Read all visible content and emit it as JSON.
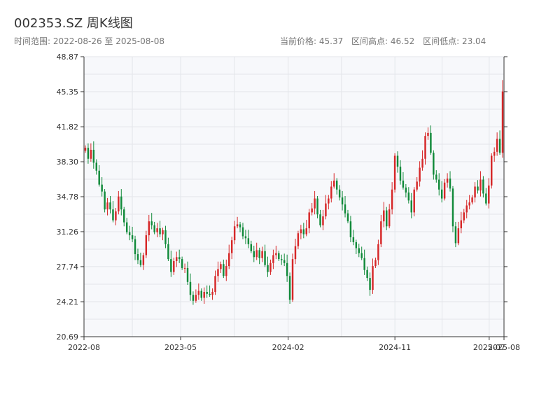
{
  "header": {
    "title": "002353.SZ 周K线图",
    "range_label": "时间范围: 2022-08-26 至 2025-08-08",
    "current_price": "当前价格: 45.37",
    "high_label": "区间高点: 46.52",
    "low_label": "区间低点: 23.04"
  },
  "colors": {
    "up": "#d62728",
    "down": "#118a3a",
    "plot_bg": "#f7f8fb",
    "grid": "#e3e5ea",
    "axis": "#333333"
  },
  "chart_data": {
    "type": "candlestick",
    "title": "002353.SZ 周K线图",
    "xlabel": "",
    "ylabel": "",
    "ylim": [
      20.69,
      48.87
    ],
    "y_ticks": [
      20.69,
      24.21,
      27.74,
      31.26,
      34.78,
      38.3,
      41.82,
      45.35,
      48.87
    ],
    "y_tick_labels": [
      "20.69",
      "24.21",
      "27.74",
      "31.26",
      "34.78",
      "38.30",
      "41.82",
      "45.35",
      "48.87"
    ],
    "x_range": [
      "2022-08-26",
      "2025-08-08"
    ],
    "x_ticks": [
      "2022-08-26",
      "2023-05-01",
      "2024-02-01",
      "2024-11-01",
      "2025-07-01",
      "2025-08-08"
    ],
    "x_tick_labels": [
      "2022-08",
      "2023-05",
      "2024-02",
      "2024-11",
      "2025-07",
      "2025-08"
    ],
    "grid": true,
    "close": [
      39.7,
      38.6,
      39.5,
      38.2,
      37.4,
      36.0,
      35.3,
      33.5,
      34.2,
      33.5,
      32.4,
      33.3,
      34.8,
      33.5,
      32.2,
      31.2,
      30.9,
      30.5,
      29.0,
      28.4,
      27.9,
      28.9,
      30.9,
      32.3,
      31.9,
      31.2,
      31.6,
      31.0,
      31.4,
      30.0,
      28.5,
      27.2,
      28.3,
      28.7,
      28.5,
      27.6,
      27.6,
      26.2,
      24.9,
      24.3,
      24.9,
      25.3,
      24.6,
      25.2,
      25.0,
      24.9,
      25.2,
      26.8,
      27.5,
      28.0,
      26.8,
      27.8,
      29.1,
      30.4,
      31.8,
      32.0,
      31.7,
      30.8,
      30.6,
      30.0,
      29.3,
      28.7,
      29.4,
      28.6,
      29.3,
      27.9,
      27.2,
      28.1,
      28.9,
      29.1,
      28.5,
      28.4,
      28.1,
      26.8,
      24.4,
      28.5,
      29.8,
      31.1,
      31.5,
      31.0,
      31.6,
      33.2,
      33.6,
      34.6,
      33.0,
      31.9,
      32.8,
      34.1,
      34.6,
      35.8,
      36.4,
      35.5,
      34.7,
      34.0,
      33.1,
      32.3,
      30.7,
      30.2,
      29.6,
      29.1,
      28.6,
      27.4,
      26.6,
      25.4,
      27.8,
      28.4,
      30.0,
      32.3,
      33.4,
      31.8,
      33.5,
      35.5,
      38.9,
      37.8,
      36.4,
      35.7,
      35.2,
      34.4,
      33.2,
      35.5,
      36.3,
      37.7,
      38.6,
      40.9,
      41.2,
      39.2,
      37.0,
      36.5,
      35.5,
      34.6,
      36.2,
      36.6,
      35.6,
      31.8,
      30.1,
      31.6,
      32.4,
      33.2,
      33.9,
      34.2,
      34.7,
      35.8,
      35.4,
      36.5,
      35.1,
      34.1,
      35.9,
      38.9,
      39.3,
      40.6,
      39.2,
      45.37
    ]
  }
}
